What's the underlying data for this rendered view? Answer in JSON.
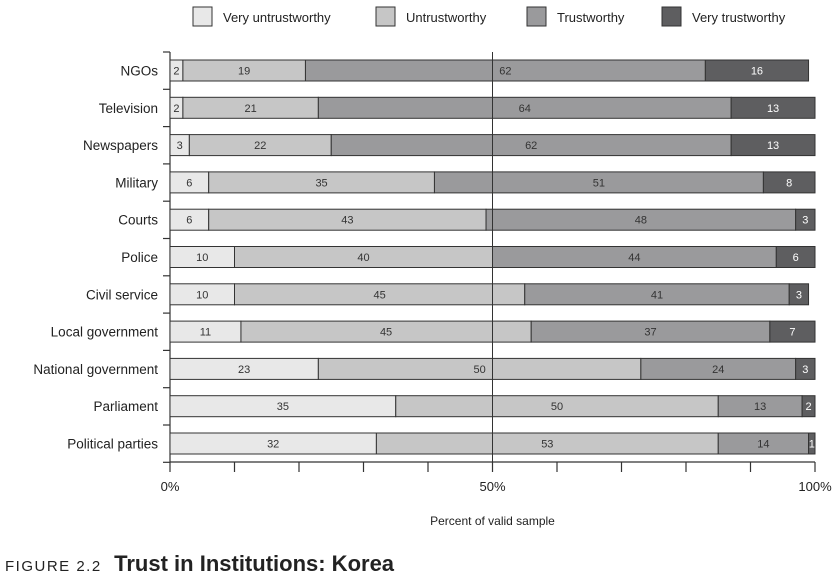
{
  "chart_data": {
    "type": "bar",
    "orientation": "horizontal",
    "stacked": true,
    "categories": [
      "NGOs",
      "Television",
      "Newspapers",
      "Military",
      "Courts",
      "Police",
      "Civil service",
      "Local government",
      "National government",
      "Parliament",
      "Political parties"
    ],
    "series": [
      {
        "name": "Very untrustworthy",
        "color": "#e8e8e8",
        "values": [
          2,
          2,
          3,
          6,
          6,
          10,
          10,
          11,
          23,
          35,
          32
        ]
      },
      {
        "name": "Untrustworthy",
        "color": "#c6c6c6",
        "values": [
          19,
          21,
          22,
          35,
          43,
          40,
          45,
          45,
          50,
          50,
          53
        ]
      },
      {
        "name": "Trustworthy",
        "color": "#9a9a9c",
        "values": [
          62,
          64,
          62,
          51,
          48,
          44,
          41,
          37,
          24,
          13,
          14
        ]
      },
      {
        "name": "Very trustworthy",
        "color": "#5e5e60",
        "values": [
          16,
          13,
          13,
          8,
          3,
          6,
          3,
          7,
          3,
          2,
          1
        ]
      }
    ],
    "label_colors": [
      "#333333",
      "#333333",
      "#333333",
      "#ffffff"
    ],
    "xlim": [
      0,
      100
    ],
    "x_ticks": [
      "0%",
      "50%",
      "100%"
    ],
    "xlabel": "Percent of valid sample",
    "ylabel": "",
    "legend_position": "top",
    "grid": false
  },
  "caption": {
    "label": "FIGURE 2.2",
    "title": "Trust in Institutions: Korea"
  }
}
